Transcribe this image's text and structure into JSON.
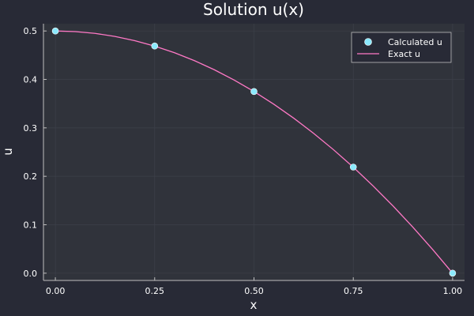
{
  "chart_data": {
    "type": "line",
    "title": "Solution u(x)",
    "xlabel": "x",
    "ylabel": "u",
    "xlim": [
      -0.03,
      1.03
    ],
    "ylim": [
      -0.015,
      0.515
    ],
    "xticks": [
      0.0,
      0.25,
      0.5,
      0.75,
      1.0
    ],
    "xtick_labels": [
      "0.00",
      "0.25",
      "0.50",
      "0.75",
      "1.00"
    ],
    "yticks": [
      0.0,
      0.1,
      0.2,
      0.3,
      0.4,
      0.5
    ],
    "ytick_labels": [
      "0.0",
      "0.1",
      "0.2",
      "0.3",
      "0.4",
      "0.5"
    ],
    "grid": true,
    "legend_position": "top-right",
    "series": [
      {
        "name": "Calculated u",
        "kind": "scatter",
        "color": "#8be9fd",
        "x": [
          0.0,
          0.25,
          0.5,
          0.75,
          1.0
        ],
        "y": [
          0.5,
          0.469,
          0.375,
          0.219,
          0.0
        ]
      },
      {
        "name": "Exact u",
        "kind": "line",
        "color": "#ff79c6",
        "x": [
          0.0,
          0.05,
          0.1,
          0.15,
          0.2,
          0.25,
          0.3,
          0.35,
          0.4,
          0.45,
          0.5,
          0.55,
          0.6,
          0.65,
          0.7,
          0.75,
          0.8,
          0.85,
          0.9,
          0.95,
          1.0
        ],
        "y": [
          0.5,
          0.49875,
          0.495,
          0.48875,
          0.48,
          0.46875,
          0.455,
          0.43875,
          0.42,
          0.39875,
          0.375,
          0.34875,
          0.32,
          0.28875,
          0.255,
          0.21875,
          0.18,
          0.13875,
          0.095,
          0.04875,
          0.0
        ]
      }
    ]
  },
  "colors": {
    "background": "#282a36",
    "plot_background": "#30333b",
    "grid": "#3d404a",
    "axis": "#bfbfbf"
  }
}
